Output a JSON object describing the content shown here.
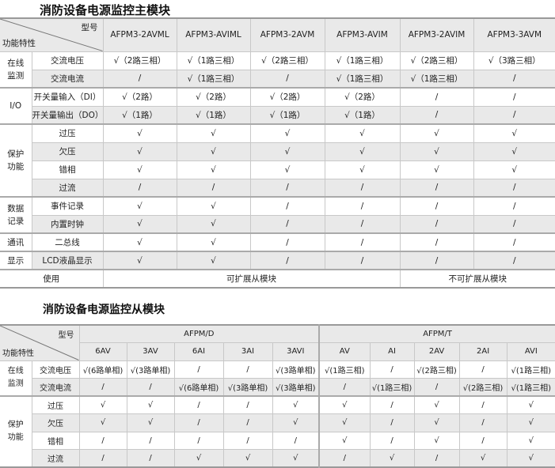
{
  "table1": {
    "title": "消防设备电源监控主模块",
    "corner_top": "型号",
    "corner_bottom": "功能特性",
    "models": [
      "AFPM3-2AVML",
      "AFPM3-AVIML",
      "AFPM3-2AVM",
      "AFPM3-AVIM",
      "AFPM3-2AVIM",
      "AFPM3-3AVM"
    ],
    "groups": [
      {
        "label": "在线监测",
        "rows": [
          {
            "name": "交流电压",
            "values": [
              "√（2路三相）",
              "√（1路三相）",
              "√（2路三相）",
              "√（1路三相）",
              "√（2路三相）",
              "√（3路三相）"
            ]
          },
          {
            "name": "交流电流",
            "values": [
              "/",
              "√（1路三相）",
              "/",
              "√（1路三相）",
              "√（1路三相）",
              "/"
            ]
          }
        ]
      },
      {
        "label": "I/O",
        "rows": [
          {
            "name": "开关量输入（DI）",
            "values": [
              "√（2路）",
              "√（2路）",
              "√（2路）",
              "√（2路）",
              "/",
              "/"
            ]
          },
          {
            "name": "开关量输出（DO）",
            "values": [
              "√（1路）",
              "√（1路）",
              "√（1路）",
              "√（1路）",
              "/",
              "/"
            ]
          }
        ]
      },
      {
        "label": "保护功能",
        "rows": [
          {
            "name": "过压",
            "values": [
              "√",
              "√",
              "√",
              "√",
              "√",
              "√"
            ]
          },
          {
            "name": "欠压",
            "values": [
              "√",
              "√",
              "√",
              "√",
              "√",
              "√"
            ]
          },
          {
            "name": "错相",
            "values": [
              "√",
              "√",
              "√",
              "√",
              "√",
              "√"
            ]
          },
          {
            "name": "过流",
            "values": [
              "/",
              "/",
              "/",
              "/",
              "/",
              "/"
            ]
          }
        ]
      },
      {
        "label": "数据记录",
        "rows": [
          {
            "name": "事件记录",
            "values": [
              "√",
              "√",
              "/",
              "/",
              "/",
              "/"
            ]
          },
          {
            "name": "内置时钟",
            "values": [
              "√",
              "√",
              "/",
              "/",
              "/",
              "/"
            ]
          }
        ]
      },
      {
        "label": "通讯",
        "rows": [
          {
            "name": "二总线",
            "values": [
              "√",
              "√",
              "/",
              "/",
              "/",
              "/"
            ]
          }
        ]
      },
      {
        "label": "显示",
        "rows": [
          {
            "name": "LCD液晶显示",
            "values": [
              "√",
              "√",
              "/",
              "/",
              "/",
              "/"
            ]
          }
        ]
      }
    ],
    "usage": {
      "label": "使用",
      "expandable": "可扩展从模块",
      "not_expandable": "不可扩展从模块"
    }
  },
  "table2": {
    "title": "消防设备电源监控从模块",
    "corner_top": "型号",
    "corner_bottom": "功能特性",
    "series": [
      {
        "name": "AFPM/D",
        "models": [
          "6AV",
          "3AV",
          "6AI",
          "3AI",
          "3AVI"
        ]
      },
      {
        "name": "AFPM/T",
        "models": [
          "AV",
          "AI",
          "2AV",
          "2AI",
          "AVI"
        ]
      }
    ],
    "groups": [
      {
        "label": "在线监测",
        "rows": [
          {
            "name": "交流电压",
            "values": [
              "√(6路单相)",
              "√(3路单相)",
              "/",
              "/",
              "√(3路单相)",
              "√(1路三相)",
              "/",
              "√(2路三相)",
              "/",
              "√(1路三相)"
            ]
          },
          {
            "name": "交流电流",
            "values": [
              "/",
              "/",
              "√(6路单相)",
              "√(3路单相)",
              "√(3路单相)",
              "/",
              "√(1路三相)",
              "/",
              "√(2路三相)",
              "√(1路三相)"
            ]
          }
        ]
      },
      {
        "label": "保护功能",
        "rows": [
          {
            "name": "过压",
            "values": [
              "√",
              "√",
              "/",
              "/",
              "√",
              "√",
              "/",
              "√",
              "/",
              "√"
            ]
          },
          {
            "name": "欠压",
            "values": [
              "√",
              "√",
              "/",
              "/",
              "√",
              "√",
              "/",
              "√",
              "/",
              "√"
            ]
          },
          {
            "name": "错相",
            "values": [
              "/",
              "/",
              "/",
              "/",
              "/",
              "√",
              "/",
              "√",
              "/",
              "√"
            ]
          },
          {
            "name": "过流",
            "values": [
              "/",
              "/",
              "√",
              "√",
              "√",
              "/",
              "√",
              "/",
              "√",
              "√"
            ]
          }
        ]
      }
    ]
  }
}
